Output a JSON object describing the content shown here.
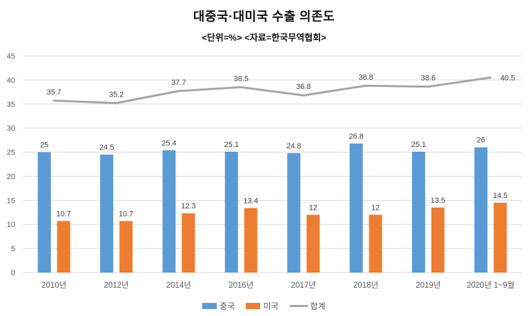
{
  "chart_data": {
    "type": "bar+line",
    "title": "대중국·대미국 수출 의존도",
    "subtitle": "<단위=%> <자료=한국무역협회>",
    "categories": [
      "2010년",
      "2012년",
      "2014년",
      "2016년",
      "2017년",
      "2018년",
      "2019년",
      "2020년 1~9월"
    ],
    "series": [
      {
        "key": "china",
        "name": "중국",
        "type": "bar",
        "color": "#5B9BD5",
        "values": [
          25,
          24.5,
          25.4,
          25.1,
          24.8,
          26.8,
          25.1,
          26
        ]
      },
      {
        "key": "usa",
        "name": "미국",
        "type": "bar",
        "color": "#ED7D31",
        "values": [
          10.7,
          10.7,
          12.3,
          13.4,
          12,
          12,
          13.5,
          14.5
        ]
      },
      {
        "key": "total",
        "name": "합계",
        "type": "line",
        "color": "#A5A5A5",
        "values": [
          35.7,
          35.2,
          37.7,
          38.5,
          36.8,
          38.8,
          38.6,
          40.5
        ]
      }
    ],
    "y_axis": {
      "min": 0,
      "max": 45,
      "step": 5,
      "ticks": [
        0,
        5,
        10,
        15,
        20,
        25,
        30,
        35,
        40,
        45
      ]
    },
    "grid": true,
    "data_labels": true,
    "legend_position": "bottom",
    "colors": {
      "grid": "#D9D9D9",
      "axis_text": "#595959",
      "data_label": "#404040",
      "background": "#FFFFFF"
    }
  }
}
